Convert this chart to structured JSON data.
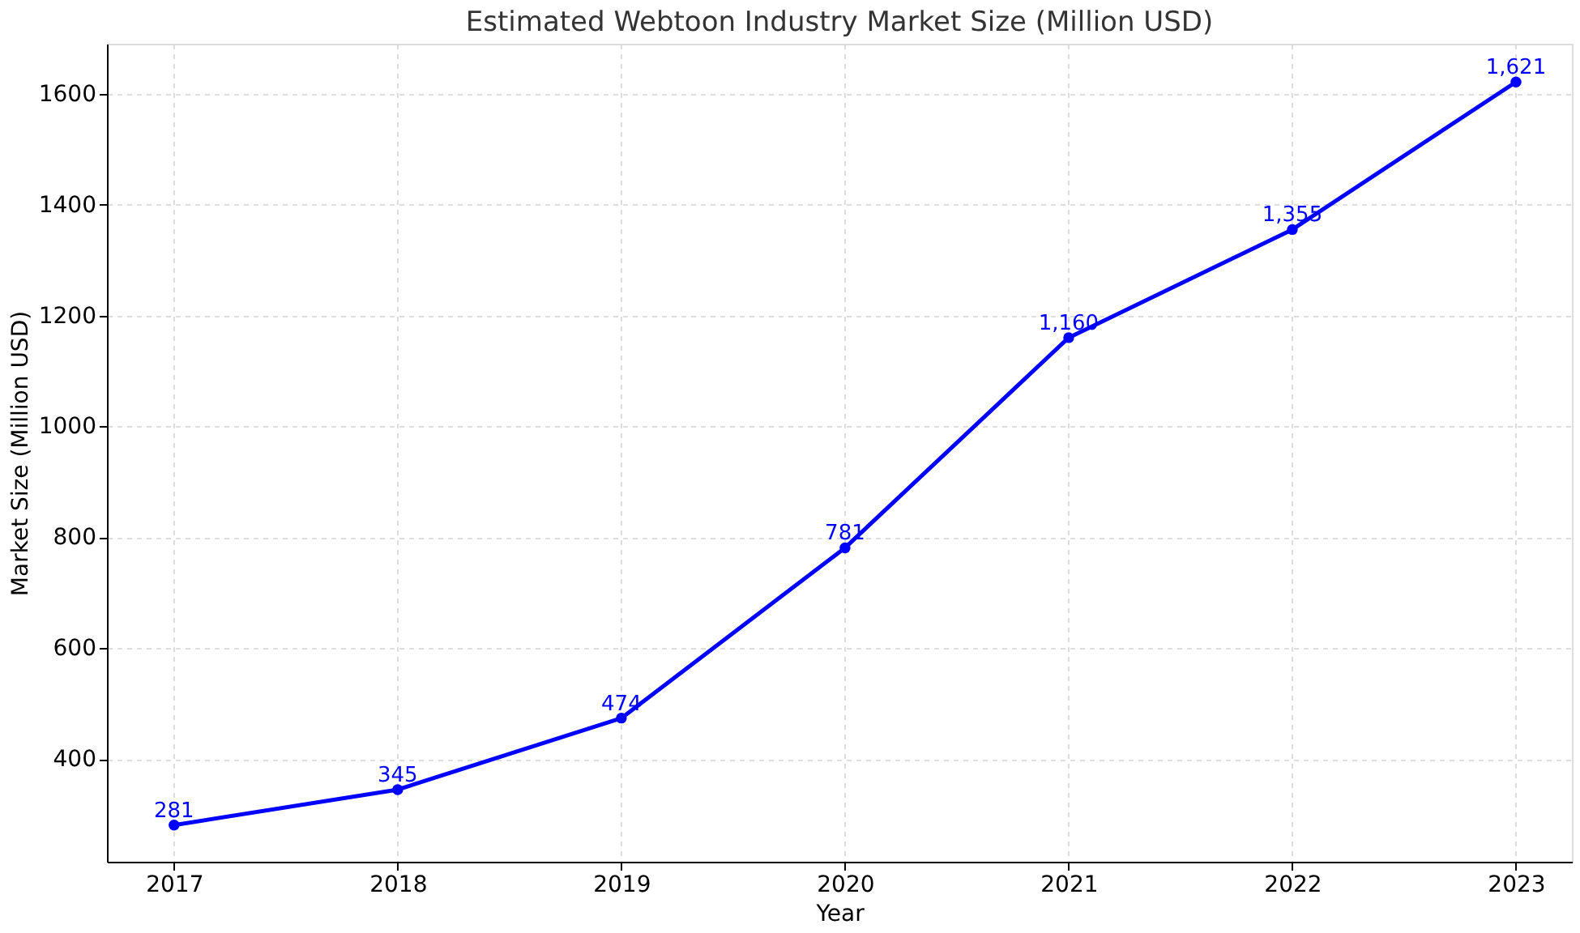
{
  "chart_data": {
    "type": "line",
    "title": "Estimated Webtoon Industry Market Size (Million USD)",
    "xlabel": "Year",
    "ylabel": "Market Size (Million USD)",
    "x": [
      2017,
      2018,
      2019,
      2020,
      2021,
      2022,
      2023
    ],
    "series": [
      {
        "color": "#0000ff",
        "values": [
          281,
          345,
          474,
          781,
          1160,
          1355,
          1621
        ],
        "value_labels": [
          "281",
          "345",
          "474",
          "781",
          "1,160",
          "1,355",
          "1,621"
        ]
      }
    ],
    "xlim": [
      2016.7,
      2023.25
    ],
    "xticks": [
      2017,
      2018,
      2019,
      2020,
      2021,
      2022,
      2023
    ],
    "ylim": [
      215,
      1690
    ],
    "yticks": [
      400,
      600,
      800,
      1000,
      1200,
      1400,
      1600
    ],
    "grid": true,
    "marker": "circle",
    "line_style": "solid"
  }
}
